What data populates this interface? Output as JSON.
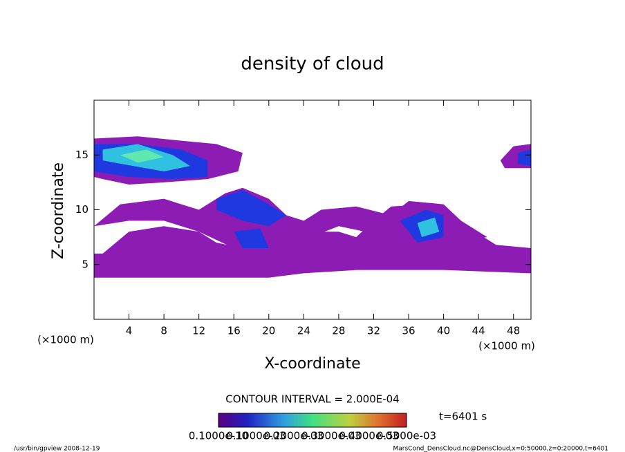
{
  "chart_data": {
    "type": "contour",
    "title": "density of cloud",
    "xlabel": "X-coordinate",
    "ylabel": "Z-coordinate",
    "xunit": "(×1000 m)",
    "yunit": "(×1000 m)",
    "xlim": [
      0,
      50
    ],
    "ylim": [
      0,
      20
    ],
    "xticks": [
      4,
      8,
      12,
      16,
      20,
      24,
      28,
      32,
      36,
      40,
      44,
      48
    ],
    "yticks": [
      5,
      10,
      15
    ],
    "contour_interval": "CONTOUR INTERVAL = 2.000E-04",
    "time_label": "t=6401 s",
    "colorbar_labels": [
      "0.1000e-10",
      "0.1000e-03",
      "0.2000e-03",
      "0.3000e-03",
      "0.4000e-03",
      "0.5000e-03"
    ],
    "footer_left": "/usr/bin/gpview   2008-12-19",
    "footer_right": "MarsCond_DensCloud.nc@DensCloud,x=0:50000,z=0:20000,t=6401",
    "contours": [
      {
        "level": 1e-11,
        "color": "#8c1cb4",
        "polygon": [
          [
            0,
            16.5
          ],
          [
            5,
            16.7
          ],
          [
            10,
            16.3
          ],
          [
            14,
            16
          ],
          [
            17,
            15.2
          ],
          [
            16.5,
            13.5
          ],
          [
            13,
            12.8
          ],
          [
            8,
            12.5
          ],
          [
            4,
            12.3
          ],
          [
            1,
            12.8
          ],
          [
            0,
            13
          ]
        ]
      },
      {
        "level": 1e-11,
        "color": "#8c1cb4",
        "polygon": [
          [
            0,
            3.8
          ],
          [
            20,
            3.8
          ],
          [
            24,
            4.2
          ],
          [
            30,
            4.5
          ],
          [
            40,
            4.5
          ],
          [
            50,
            4.2
          ],
          [
            50,
            6.5
          ],
          [
            46,
            6.8
          ],
          [
            44,
            7.8
          ],
          [
            42,
            9
          ],
          [
            38,
            10.5
          ],
          [
            34,
            10.3
          ],
          [
            32,
            9
          ],
          [
            30,
            7.5
          ],
          [
            28,
            8
          ],
          [
            24,
            8
          ],
          [
            20,
            7.5
          ],
          [
            17,
            6.5
          ],
          [
            14,
            7
          ],
          [
            12,
            8
          ],
          [
            8,
            8.5
          ],
          [
            4,
            8
          ],
          [
            1,
            6
          ],
          [
            0,
            6
          ]
        ]
      },
      {
        "level": 1e-11,
        "color": "#8c1cb4",
        "polygon": [
          [
            0,
            8.5
          ],
          [
            3,
            10.5
          ],
          [
            8,
            11
          ],
          [
            12,
            10
          ],
          [
            15,
            11.5
          ],
          [
            17,
            12
          ],
          [
            20,
            11
          ],
          [
            22,
            9.5
          ],
          [
            24,
            9
          ],
          [
            26,
            10
          ],
          [
            30,
            10.3
          ],
          [
            34,
            9.5
          ],
          [
            36,
            10.8
          ],
          [
            40,
            10.5
          ],
          [
            42,
            9
          ],
          [
            45,
            7.5
          ],
          [
            40,
            7
          ],
          [
            34,
            7.5
          ],
          [
            28,
            8.5
          ],
          [
            20,
            6
          ],
          [
            16,
            6.5
          ],
          [
            12,
            8
          ],
          [
            8,
            9
          ],
          [
            4,
            9
          ],
          [
            0,
            8.5
          ]
        ]
      },
      {
        "level": 1e-11,
        "color": "#8c1cb4",
        "polygon": [
          [
            46.5,
            14.5
          ],
          [
            48,
            15.8
          ],
          [
            50,
            16
          ],
          [
            50,
            13.8
          ],
          [
            47,
            13.8
          ]
        ]
      },
      {
        "level": 0.0001,
        "color": "#2038e0",
        "polygon": [
          [
            0,
            16
          ],
          [
            5,
            16
          ],
          [
            10,
            15.5
          ],
          [
            13,
            14.5
          ],
          [
            13,
            13
          ],
          [
            9,
            12.8
          ],
          [
            4,
            13
          ],
          [
            0,
            13.5
          ]
        ]
      },
      {
        "level": 0.0001,
        "color": "#2038e0",
        "polygon": [
          [
            14,
            11
          ],
          [
            17,
            11.8
          ],
          [
            20,
            10.5
          ],
          [
            22,
            9.5
          ],
          [
            20,
            8.5
          ],
          [
            17,
            9
          ],
          [
            14,
            10
          ]
        ]
      },
      {
        "level": 0.0001,
        "color": "#2038e0",
        "polygon": [
          [
            16,
            8
          ],
          [
            19,
            8.3
          ],
          [
            20,
            6.5
          ],
          [
            17,
            6.5
          ]
        ]
      },
      {
        "level": 0.0001,
        "color": "#2038e0",
        "polygon": [
          [
            35,
            9
          ],
          [
            38,
            10
          ],
          [
            40,
            9.5
          ],
          [
            40,
            7.5
          ],
          [
            37,
            7
          ]
        ]
      },
      {
        "level": 0.0001,
        "color": "#2038e0",
        "polygon": [
          [
            48.5,
            15.2
          ],
          [
            50,
            15.5
          ],
          [
            50,
            14
          ],
          [
            48.5,
            14.2
          ]
        ]
      },
      {
        "level": 0.0002,
        "color": "#30c0e0",
        "polygon": [
          [
            1,
            15.5
          ],
          [
            5,
            16
          ],
          [
            9,
            15
          ],
          [
            11,
            14
          ],
          [
            8,
            13.5
          ],
          [
            3,
            14.2
          ],
          [
            1,
            14.5
          ]
        ]
      },
      {
        "level": 0.0002,
        "color": "#30c0e0",
        "polygon": [
          [
            37,
            8.8
          ],
          [
            39,
            9.3
          ],
          [
            39.5,
            8
          ],
          [
            37.5,
            7.5
          ]
        ]
      },
      {
        "level": 0.0003,
        "color": "#60e8b0",
        "polygon": [
          [
            3,
            15
          ],
          [
            6,
            15.5
          ],
          [
            8,
            14.8
          ],
          [
            5,
            14.3
          ]
        ]
      }
    ]
  }
}
